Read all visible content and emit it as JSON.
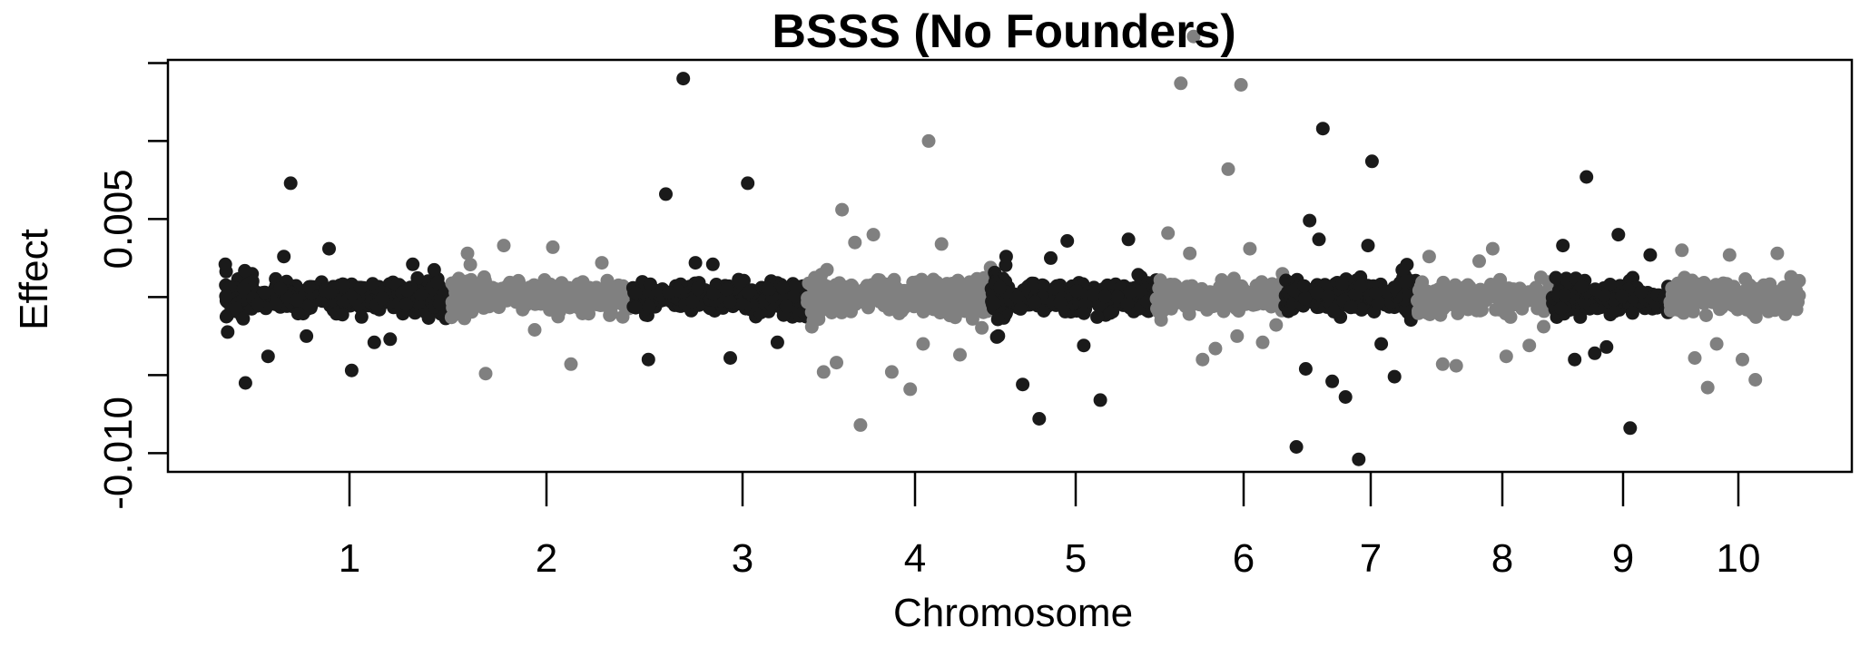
{
  "chart_data": {
    "type": "scatter",
    "title": "BSSS (No Founders)",
    "xlabel": "Chromosome",
    "ylabel": "Effect",
    "x_ticks": [
      "1",
      "2",
      "3",
      "4",
      "5",
      "6",
      "7",
      "8",
      "9",
      "10"
    ],
    "y_ticks": [
      {
        "value": 0.005,
        "label": "0.005"
      },
      {
        "value": -0.01,
        "label": "-0.010"
      }
    ],
    "ylim": [
      -0.0112,
      0.0152
    ],
    "grid": false,
    "legend": "none",
    "colors": {
      "odd_chromosomes": "#1a1a1a",
      "even_chromosomes": "#808080"
    },
    "chromosomes": [
      {
        "chromosome": "1",
        "color": "#1a1a1a",
        "band_spread": 0.0008,
        "start_spread": 0.0014,
        "end_spread": 0.0011,
        "outliers": [
          0.0073,
          -0.0029,
          -0.0038,
          -0.0047,
          -0.0055,
          0.0031,
          0.0021,
          -0.0025,
          -0.0027,
          0.0026
        ]
      },
      {
        "chromosome": "2",
        "color": "#808080",
        "band_spread": 0.0008,
        "start_spread": 0.0013,
        "end_spread": 0.0009,
        "outliers": [
          0.0033,
          -0.0043,
          -0.0049,
          0.0032,
          0.0028,
          -0.0021,
          0.0022
        ]
      },
      {
        "chromosome": "3",
        "color": "#1a1a1a",
        "band_spread": 0.0008,
        "start_spread": 0.0012,
        "end_spread": 0.0011,
        "outliers": [
          0.014,
          0.0073,
          0.0066,
          -0.0039,
          -0.004,
          0.0021,
          -0.0029,
          0.0022
        ]
      },
      {
        "chromosome": "4",
        "color": "#808080",
        "band_spread": 0.0009,
        "start_spread": 0.0015,
        "end_spread": 0.0016,
        "outliers": [
          -0.0082,
          0.01,
          0.0056,
          -0.0059,
          -0.0048,
          -0.0048,
          -0.0037,
          0.004,
          0.0034,
          0.0035,
          -0.003,
          -0.0042
        ]
      },
      {
        "chromosome": "5",
        "color": "#1a1a1a",
        "band_spread": 0.0008,
        "start_spread": 0.0016,
        "end_spread": 0.001,
        "outliers": [
          -0.0078,
          -0.0066,
          -0.0056,
          -0.0031,
          0.0026,
          0.0036,
          0.0037,
          0.0025
        ]
      },
      {
        "chromosome": "6",
        "color": "#808080",
        "band_spread": 0.0008,
        "start_spread": 0.0011,
        "end_spread": 0.0014,
        "outliers": [
          0.0167,
          0.0136,
          0.0137,
          0.0082,
          0.0041,
          -0.0033,
          -0.0029,
          -0.004,
          0.0031,
          0.0028,
          -0.0025
        ]
      },
      {
        "chromosome": "7",
        "color": "#1a1a1a",
        "band_spread": 0.0008,
        "start_spread": 0.0014,
        "end_spread": 0.0015,
        "outliers": [
          0.0108,
          0.0087,
          0.0049,
          -0.0104,
          -0.0096,
          -0.0064,
          -0.0051,
          -0.0054,
          -0.003,
          0.0037,
          0.0033,
          -0.0046
        ]
      },
      {
        "chromosome": "8",
        "color": "#808080",
        "band_spread": 0.0008,
        "start_spread": 0.001,
        "end_spread": 0.0013,
        "outliers": [
          -0.0044,
          -0.0038,
          -0.0043,
          0.0031,
          0.0026,
          0.0023,
          -0.0031
        ]
      },
      {
        "chromosome": "9",
        "color": "#1a1a1a",
        "band_spread": 0.0008,
        "start_spread": 0.0013,
        "end_spread": 0.0011,
        "outliers": [
          0.0077,
          -0.0084,
          -0.004,
          0.004,
          0.0033,
          -0.0032,
          0.0027,
          -0.0036
        ]
      },
      {
        "chromosome": "10",
        "color": "#808080",
        "band_spread": 0.0008,
        "start_spread": 0.0012,
        "end_spread": 0.0009,
        "outliers": [
          -0.0058,
          -0.0053,
          -0.0039,
          -0.004,
          0.003,
          0.0027,
          0.0028,
          -0.003
        ]
      }
    ]
  }
}
